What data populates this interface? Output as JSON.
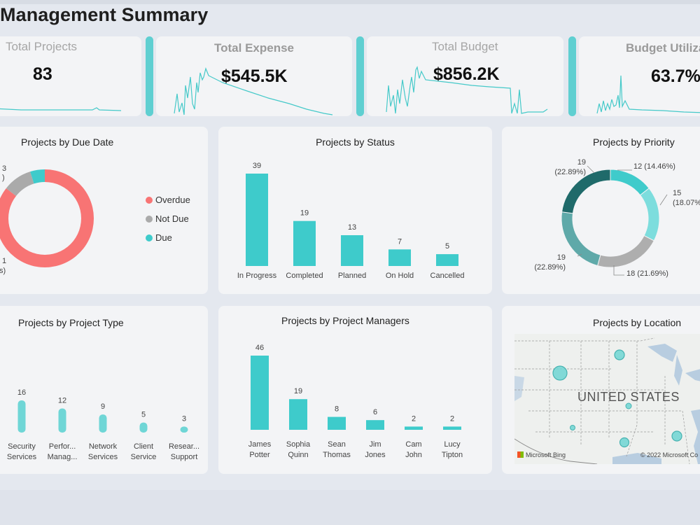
{
  "page": {
    "title": "Management Summary"
  },
  "kpis": [
    {
      "label": "Total Projects",
      "value": "83"
    },
    {
      "label": "Total Expense",
      "value": "$545.5K"
    },
    {
      "label": "Total Budget",
      "value": "$856.2K"
    },
    {
      "label": "Budget Utiliza",
      "value": "63.7%"
    }
  ],
  "colors": {
    "accent": "#3ecbcb",
    "overdue": "#f87474",
    "not_due": "#aaaaaa",
    "due": "#3ecbcb"
  },
  "due_date": {
    "title": "Projects by Due Date",
    "left_labels": {
      "top": "3",
      "top2": ")",
      "bottom": "1",
      "bottom2": "s)"
    },
    "legend": [
      "Overdue",
      "Not Due",
      "Due"
    ]
  },
  "chart_data": [
    {
      "type": "pie",
      "title": "Projects by Due Date",
      "categories": [
        "Overdue",
        "Not Due",
        "Due"
      ],
      "values": [
        71,
        8,
        4
      ]
    },
    {
      "type": "bar",
      "title": "Projects by Status",
      "categories": [
        "In Progress",
        "Completed",
        "Planned",
        "On Hold",
        "Cancelled"
      ],
      "values": [
        39,
        19,
        13,
        7,
        5
      ]
    },
    {
      "type": "pie",
      "title": "Projects by Priority",
      "values": [
        12,
        15,
        18,
        19,
        19
      ],
      "labels": [
        {
          "lines": [
            "12 (14.46%)"
          ]
        },
        {
          "lines": [
            "15",
            "(18.07%"
          ]
        },
        {
          "lines": [
            "18 (21.69%)"
          ]
        },
        {
          "lines": [
            "19",
            "(22.89%)"
          ]
        },
        {
          "lines": [
            "19",
            "(22.89%)"
          ]
        }
      ]
    },
    {
      "type": "bar",
      "title": "Projects by Project Type",
      "categories": [
        [
          "Security",
          "Services"
        ],
        [
          "Perfor...",
          "Manag..."
        ],
        [
          "Network",
          "Services"
        ],
        [
          "Client",
          "Service"
        ],
        [
          "Resear...",
          "Support"
        ]
      ],
      "values": [
        16,
        12,
        9,
        5,
        3
      ]
    },
    {
      "type": "bar",
      "title": "Projects by Project Managers",
      "categories": [
        [
          "James",
          "Potter"
        ],
        [
          "Sophia",
          "Quinn"
        ],
        [
          "Sean",
          "Thomas"
        ],
        [
          "Jim",
          "Jones"
        ],
        [
          "Cam",
          "John"
        ],
        [
          "Lucy",
          "Tipton"
        ]
      ],
      "values": [
        46,
        19,
        8,
        6,
        2,
        2
      ]
    }
  ],
  "location": {
    "title": "Projects by Location",
    "country": "UNITED STATES",
    "credit_left": "Microsoft Bing",
    "credit_right": "© 2022 Microsoft Co"
  }
}
